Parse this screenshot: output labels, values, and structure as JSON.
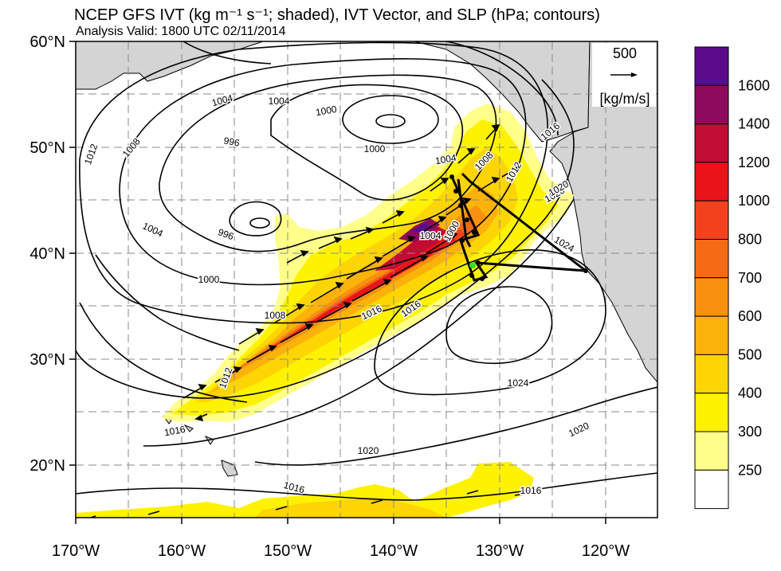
{
  "title": "NCEP GFS IVT (kg m⁻¹ s⁻¹; shaded), IVT Vector, and SLP (hPa; contours)",
  "subtitle": "Analysis Valid: 1800 UTC 02/11/2014",
  "vector_key": {
    "value": "500",
    "units": "[kg/m/s]"
  },
  "lat_labels": [
    "60°N",
    "50°N",
    "40°N",
    "30°N",
    "20°N"
  ],
  "lon_labels": [
    "170°W",
    "160°W",
    "150°W",
    "140°W",
    "130°W",
    "120°W"
  ],
  "contour_labels": [
    "1012",
    "1008",
    "1004",
    "1004",
    "1000",
    "996",
    "1000",
    "1004",
    "996",
    "1000",
    "1008",
    "1012",
    "1016",
    "1016",
    "1020",
    "1004",
    "1008",
    "1012",
    "1016",
    "1020",
    "1024",
    "1024",
    "1020",
    "1020",
    "1016",
    "1016",
    "1016",
    "1000",
    "1004"
  ],
  "colorbar": {
    "labels": [
      "1600",
      "1400",
      "1200",
      "1000",
      "800",
      "700",
      "600",
      "500",
      "400",
      "300",
      "250"
    ],
    "colors": [
      "#5b0a8c",
      "#8e0a5e",
      "#c10c34",
      "#e8141a",
      "#f2421d",
      "#f56a14",
      "#f99010",
      "#fbb20a",
      "#fdd404",
      "#fef200",
      "#ffff8a",
      "#ffffff"
    ]
  },
  "colors": {
    "land": "#d4d4d4",
    "ocean": "#ffffff",
    "grid": "#888888",
    "flight_track": "#000000",
    "marker": "#2ee02e"
  }
}
